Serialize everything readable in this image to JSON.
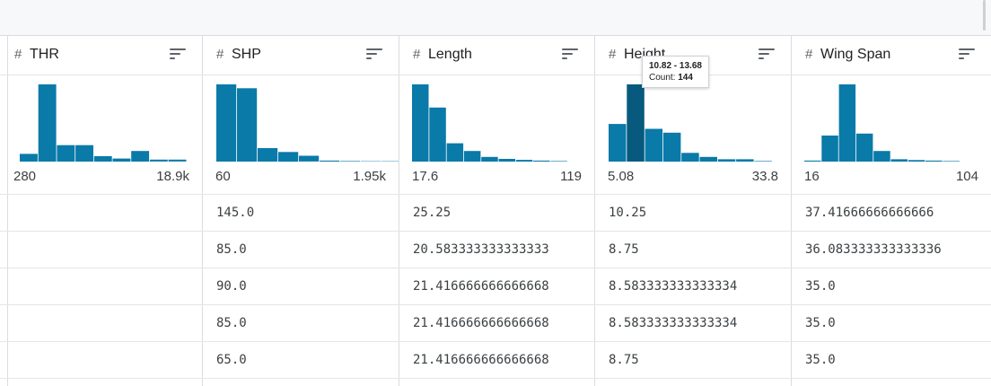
{
  "columns": [
    {
      "name": "THR",
      "type_icon": "hash-icon",
      "range_min": "280",
      "range_max": "18.9k",
      "hist": [
        4,
        40,
        8.5,
        8.5,
        2.8,
        1.6,
        5.5,
        1.0,
        1.0
      ],
      "values": [
        "",
        "",
        "",
        "",
        ""
      ]
    },
    {
      "name": "SHP",
      "type_icon": "hash-icon",
      "range_min": "60",
      "range_max": "1.95k",
      "hist": [
        40,
        38,
        7,
        5,
        3,
        0.5,
        0.3,
        0.2,
        0.2
      ],
      "values": [
        "145.0",
        "85.0",
        "90.0",
        "85.0",
        "65.0"
      ]
    },
    {
      "name": "Length",
      "type_icon": "hash-icon",
      "range_min": "17.6",
      "range_max": "119",
      "hist": [
        40,
        28,
        9.5,
        5.5,
        2.4,
        1.4,
        0.9,
        0.5,
        0.3
      ],
      "values": [
        "25.25",
        "20.583333333333333",
        "21.416666666666668",
        "21.416666666666668",
        "21.416666666666668"
      ]
    },
    {
      "name": "Height",
      "type_icon": "hash-icon",
      "range_min": "5.08",
      "range_max": "33.8",
      "hist": [
        19.5,
        40,
        17,
        15,
        4.5,
        2.4,
        1.2,
        1.2,
        0.3
      ],
      "values": [
        "10.25",
        "8.75",
        "8.583333333333334",
        "8.583333333333334",
        "8.75"
      ]
    },
    {
      "name": "Wing Span",
      "type_icon": "hash-icon",
      "range_min": "16",
      "range_max": "104",
      "hist": [
        0.5,
        13.5,
        40,
        14.5,
        5.5,
        1.2,
        0.8,
        0.5,
        0.3
      ],
      "values": [
        "37.41666666666666",
        "36.083333333333336",
        "35.0",
        "35.0",
        "35.0"
      ]
    }
  ],
  "tooltip": {
    "column": "Height",
    "bin": 1,
    "range": "10.82 - 13.68",
    "count_label": "Count:",
    "count": "144"
  },
  "colors": {
    "bar": "#0a7aa8",
    "bar_hover": "#075a7e",
    "grid": "#dadce0"
  }
}
